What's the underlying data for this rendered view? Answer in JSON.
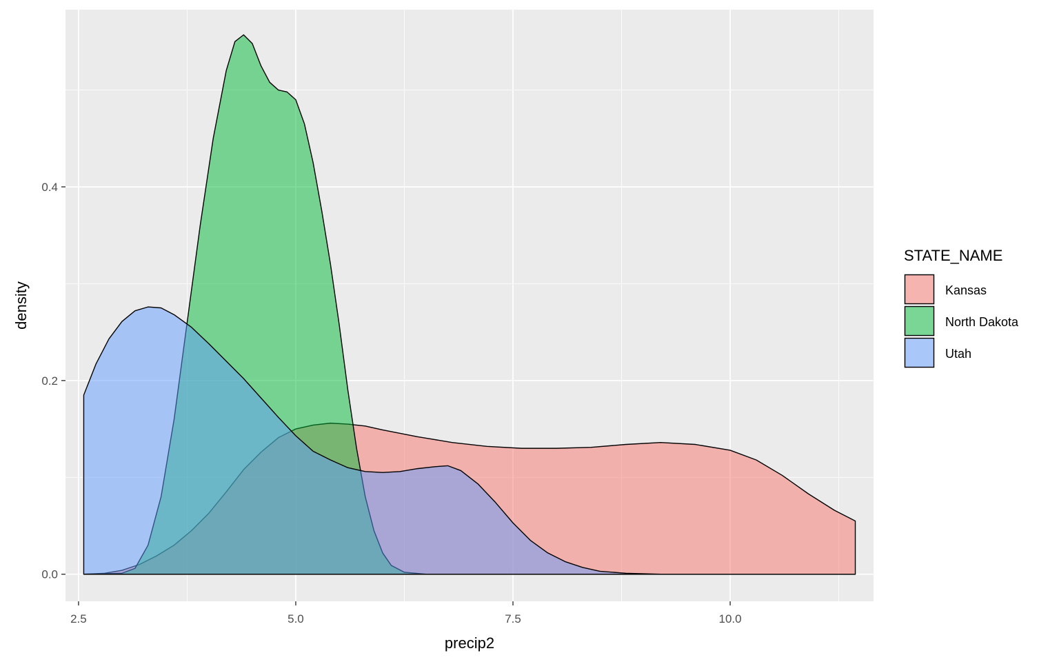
{
  "chart_data": {
    "type": "area",
    "subtype": "density",
    "xlabel": "precip2",
    "ylabel": "density",
    "xlim": [
      2.35,
      11.65
    ],
    "ylim": [
      -0.028,
      0.583
    ],
    "x_ticks": [
      2.5,
      5.0,
      7.5,
      10.0
    ],
    "x_tick_labels": [
      "2.5",
      "5.0",
      "7.5",
      "10.0"
    ],
    "y_ticks": [
      0.0,
      0.2,
      0.4
    ],
    "y_tick_labels": [
      "0.0",
      "0.2",
      "0.4"
    ],
    "grid": true,
    "legend": {
      "title": "STATE_NAME",
      "position": "right"
    },
    "series": [
      {
        "name": "Kansas",
        "color": "#F8766D",
        "points": [
          [
            2.56,
            0.0
          ],
          [
            2.8,
            0.001
          ],
          [
            3.0,
            0.004
          ],
          [
            3.2,
            0.01
          ],
          [
            3.4,
            0.019
          ],
          [
            3.6,
            0.03
          ],
          [
            3.8,
            0.045
          ],
          [
            4.0,
            0.063
          ],
          [
            4.2,
            0.085
          ],
          [
            4.4,
            0.108
          ],
          [
            4.6,
            0.126
          ],
          [
            4.8,
            0.141
          ],
          [
            5.0,
            0.15
          ],
          [
            5.2,
            0.154
          ],
          [
            5.4,
            0.156
          ],
          [
            5.6,
            0.155
          ],
          [
            5.8,
            0.153
          ],
          [
            6.0,
            0.149
          ],
          [
            6.4,
            0.142
          ],
          [
            6.8,
            0.136
          ],
          [
            7.2,
            0.132
          ],
          [
            7.6,
            0.13
          ],
          [
            8.0,
            0.13
          ],
          [
            8.4,
            0.131
          ],
          [
            8.8,
            0.134
          ],
          [
            9.2,
            0.136
          ],
          [
            9.6,
            0.134
          ],
          [
            10.0,
            0.128
          ],
          [
            10.3,
            0.118
          ],
          [
            10.6,
            0.102
          ],
          [
            10.9,
            0.083
          ],
          [
            11.2,
            0.066
          ],
          [
            11.44,
            0.055
          ],
          [
            11.44,
            0.0
          ]
        ]
      },
      {
        "name": "North Dakota",
        "color": "#00BA38",
        "points": [
          [
            2.56,
            0.0
          ],
          [
            3.0,
            0.001
          ],
          [
            3.15,
            0.006
          ],
          [
            3.3,
            0.03
          ],
          [
            3.45,
            0.08
          ],
          [
            3.6,
            0.16
          ],
          [
            3.75,
            0.26
          ],
          [
            3.9,
            0.36
          ],
          [
            4.05,
            0.45
          ],
          [
            4.2,
            0.52
          ],
          [
            4.3,
            0.55
          ],
          [
            4.4,
            0.557
          ],
          [
            4.5,
            0.548
          ],
          [
            4.6,
            0.525
          ],
          [
            4.7,
            0.508
          ],
          [
            4.8,
            0.5
          ],
          [
            4.9,
            0.498
          ],
          [
            5.0,
            0.49
          ],
          [
            5.1,
            0.465
          ],
          [
            5.2,
            0.425
          ],
          [
            5.3,
            0.375
          ],
          [
            5.4,
            0.32
          ],
          [
            5.5,
            0.258
          ],
          [
            5.6,
            0.19
          ],
          [
            5.7,
            0.13
          ],
          [
            5.8,
            0.08
          ],
          [
            5.9,
            0.045
          ],
          [
            6.0,
            0.022
          ],
          [
            6.1,
            0.009
          ],
          [
            6.25,
            0.002
          ],
          [
            6.5,
            0.0
          ],
          [
            11.44,
            0.0
          ]
        ]
      },
      {
        "name": "Utah",
        "color": "#619CFF",
        "points": [
          [
            2.56,
            0.185
          ],
          [
            2.7,
            0.217
          ],
          [
            2.85,
            0.243
          ],
          [
            3.0,
            0.261
          ],
          [
            3.15,
            0.272
          ],
          [
            3.3,
            0.276
          ],
          [
            3.45,
            0.275
          ],
          [
            3.6,
            0.268
          ],
          [
            3.8,
            0.255
          ],
          [
            4.0,
            0.238
          ],
          [
            4.2,
            0.22
          ],
          [
            4.4,
            0.202
          ],
          [
            4.6,
            0.182
          ],
          [
            4.8,
            0.162
          ],
          [
            5.0,
            0.143
          ],
          [
            5.2,
            0.127
          ],
          [
            5.4,
            0.118
          ],
          [
            5.6,
            0.11
          ],
          [
            5.8,
            0.106
          ],
          [
            6.0,
            0.105
          ],
          [
            6.2,
            0.106
          ],
          [
            6.4,
            0.109
          ],
          [
            6.6,
            0.111
          ],
          [
            6.75,
            0.112
          ],
          [
            6.9,
            0.107
          ],
          [
            7.1,
            0.093
          ],
          [
            7.3,
            0.074
          ],
          [
            7.5,
            0.053
          ],
          [
            7.7,
            0.035
          ],
          [
            7.9,
            0.022
          ],
          [
            8.1,
            0.013
          ],
          [
            8.3,
            0.007
          ],
          [
            8.5,
            0.003
          ],
          [
            8.8,
            0.001
          ],
          [
            9.2,
            0.0
          ],
          [
            11.44,
            0.0
          ],
          [
            11.44,
            0.0
          ],
          [
            2.56,
            0.0
          ]
        ]
      }
    ]
  }
}
